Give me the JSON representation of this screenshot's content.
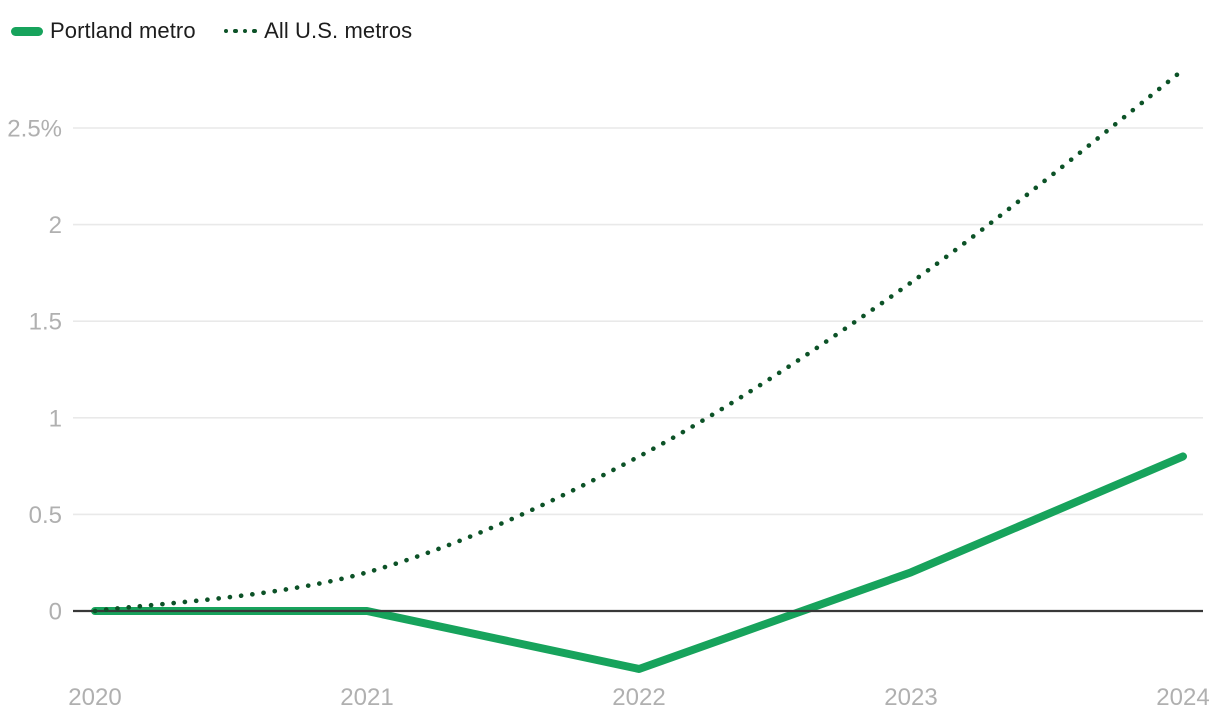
{
  "legend": {
    "items": [
      {
        "label": "Portland metro",
        "style": "solid",
        "color": "#17a35c"
      },
      {
        "label": "All U.S. metros",
        "style": "dotted",
        "color": "#0c5227"
      }
    ]
  },
  "chart_data": {
    "type": "line",
    "x": [
      2020,
      2021,
      2022,
      2023,
      2024
    ],
    "x_tick_labels": [
      "2020",
      "2021",
      "2022",
      "2023",
      "2024"
    ],
    "series": [
      {
        "name": "Portland metro",
        "style": "solid",
        "color": "#17a35c",
        "values": [
          0,
          0,
          -0.3,
          0.2,
          0.8
        ]
      },
      {
        "name": "All U.S. metros",
        "style": "dotted",
        "color": "#0c5227",
        "values": [
          0,
          0.2,
          0.8,
          1.7,
          2.8
        ]
      }
    ],
    "y_ticks": [
      0,
      0.5,
      1,
      1.5,
      2,
      2.5
    ],
    "y_tick_labels": [
      "0",
      "0.5",
      "1",
      "1.5",
      "2",
      "2.5%"
    ],
    "ylim": [
      -0.45,
      2.95
    ],
    "unit": "percent",
    "grid": true,
    "legend_position": "top-left",
    "title": "",
    "xlabel": "",
    "ylabel": ""
  },
  "style": {
    "grid_color": "#e9e9e9",
    "zero_line_color": "#383838",
    "tick_label_color": "#b0b0b0",
    "legend_text_color": "#1d1d1d"
  }
}
